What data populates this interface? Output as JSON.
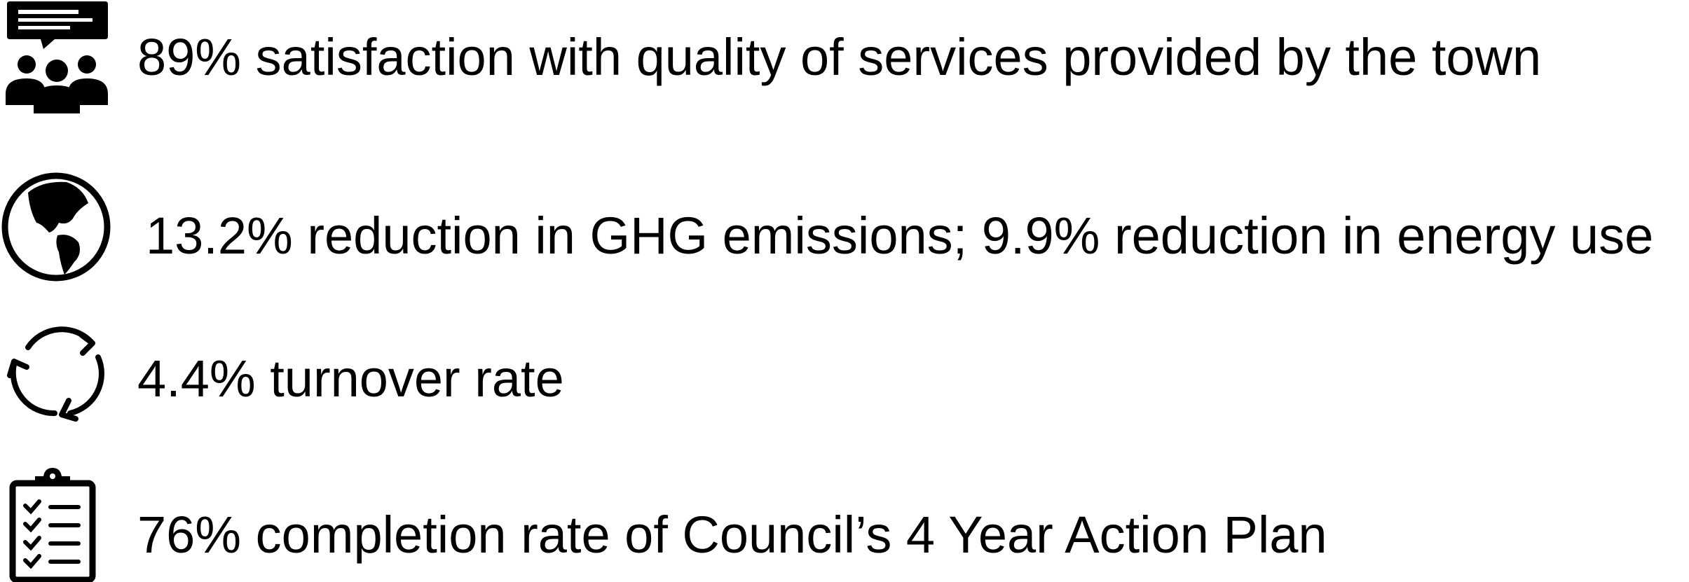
{
  "items": [
    {
      "text": "89% satisfaction with quality of services provided by the town"
    },
    {
      "text": "13.2% reduction in GHG emissions; 9.9% reduction in energy use"
    },
    {
      "text": "4.4% turnover rate"
    },
    {
      "text": "76% completion rate of Council’s 4 Year Action Plan"
    }
  ]
}
